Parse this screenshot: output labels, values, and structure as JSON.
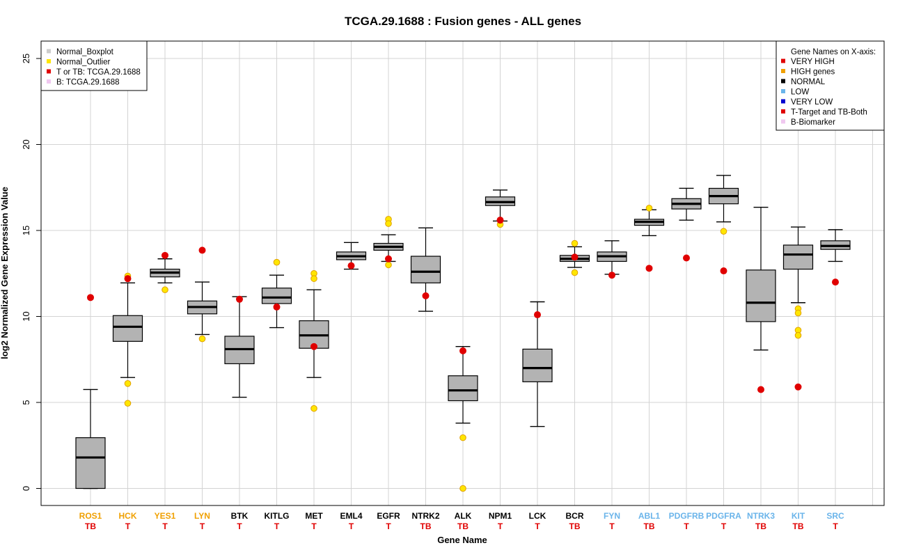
{
  "chart_data": {
    "type": "boxplot",
    "title": "TCGA.29.1688 : Fusion genes - ALL genes",
    "xlabel": "Gene Name",
    "ylabel": "log2 Normalized Gene Expression Value",
    "ylim": [
      -1,
      26
    ],
    "yticks": [
      0,
      5,
      10,
      15,
      20,
      25
    ],
    "grid": true,
    "colors": {
      "box_fill": "#b3b3b3",
      "outlier": "#ffe600",
      "sample": "#e00000",
      "very_high": "#e00000",
      "high": "#f0a000",
      "normal": "#000000",
      "low": "#6ab4ea",
      "very_low": "#0000d0",
      "biomarker": "#f0c8f0"
    },
    "legend_left": {
      "position": "top-left",
      "items": [
        {
          "label": "Normal_Boxplot",
          "color": "#cccccc"
        },
        {
          "label": "Normal_Outlier",
          "color": "#ffe600"
        },
        {
          "label": "T or TB: TCGA.29.1688",
          "color": "#e00000"
        },
        {
          "label": "B: TCGA.29.1688",
          "color": "#f0c8f0"
        }
      ]
    },
    "legend_right": {
      "position": "top-right",
      "title": "Gene Names on X-axis:",
      "items": [
        {
          "label": "VERY HIGH",
          "color": "#e00000"
        },
        {
          "label": "HIGH genes",
          "color": "#f0a000"
        },
        {
          "label": "NORMAL",
          "color": "#000000"
        },
        {
          "label": "LOW",
          "color": "#6ab4ea"
        },
        {
          "label": "VERY LOW",
          "color": "#0000d0"
        },
        {
          "label": "T-Target and TB-Both",
          "color": "#e00000"
        },
        {
          "label": "B-Biomarker",
          "color": "#f0c8f0"
        }
      ]
    },
    "genes": [
      {
        "name": "ROS1",
        "tag": "TB",
        "level": "high",
        "whisker_low": 0.0,
        "q1": 0.0,
        "median": 1.8,
        "q3": 2.95,
        "whisker_high": 5.75,
        "outliers": [],
        "sample": 11.1
      },
      {
        "name": "HCK",
        "tag": "T",
        "level": "high",
        "whisker_low": 6.45,
        "q1": 8.55,
        "median": 9.4,
        "q3": 10.05,
        "whisker_high": 11.95,
        "outliers": [
          12.35,
          6.1,
          4.95
        ],
        "sample": 12.2
      },
      {
        "name": "YES1",
        "tag": "T",
        "level": "high",
        "whisker_low": 11.95,
        "q1": 12.3,
        "median": 12.55,
        "q3": 12.75,
        "whisker_high": 13.35,
        "outliers": [
          11.55
        ],
        "sample": 13.55
      },
      {
        "name": "LYN",
        "tag": "T",
        "level": "high",
        "whisker_low": 8.95,
        "q1": 10.15,
        "median": 10.55,
        "q3": 10.9,
        "whisker_high": 12.0,
        "outliers": [
          8.7
        ],
        "sample": 13.85
      },
      {
        "name": "BTK",
        "tag": "T",
        "level": "normal",
        "whisker_low": 5.3,
        "q1": 7.25,
        "median": 8.1,
        "q3": 8.85,
        "whisker_high": 11.15,
        "outliers": [],
        "sample": 11.0
      },
      {
        "name": "KITLG",
        "tag": "T",
        "level": "normal",
        "whisker_low": 9.35,
        "q1": 10.75,
        "median": 11.1,
        "q3": 11.65,
        "whisker_high": 12.4,
        "outliers": [
          13.15
        ],
        "sample": 10.55
      },
      {
        "name": "MET",
        "tag": "T",
        "level": "normal",
        "whisker_low": 6.45,
        "q1": 8.15,
        "median": 8.9,
        "q3": 9.75,
        "whisker_high": 11.55,
        "outliers": [
          12.5,
          12.2,
          4.65
        ],
        "sample": 8.25
      },
      {
        "name": "EML4",
        "tag": "T",
        "level": "normal",
        "whisker_low": 12.75,
        "q1": 13.3,
        "median": 13.5,
        "q3": 13.75,
        "whisker_high": 14.3,
        "outliers": [],
        "sample": 12.95
      },
      {
        "name": "EGFR",
        "tag": "T",
        "level": "normal",
        "whisker_low": 13.2,
        "q1": 13.85,
        "median": 14.05,
        "q3": 14.25,
        "whisker_high": 14.75,
        "outliers": [
          15.65,
          15.4,
          13.0
        ],
        "sample": 13.35
      },
      {
        "name": "NTRK2",
        "tag": "TB",
        "level": "normal",
        "whisker_low": 10.3,
        "q1": 11.95,
        "median": 12.6,
        "q3": 13.5,
        "whisker_high": 15.15,
        "outliers": [],
        "sample": 11.2
      },
      {
        "name": "ALK",
        "tag": "TB",
        "level": "normal",
        "whisker_low": 3.8,
        "q1": 5.1,
        "median": 5.7,
        "q3": 6.55,
        "whisker_high": 8.25,
        "outliers": [
          2.95,
          0.0
        ],
        "sample": 8.0
      },
      {
        "name": "NPM1",
        "tag": "T",
        "level": "normal",
        "whisker_low": 15.55,
        "q1": 16.45,
        "median": 16.65,
        "q3": 16.95,
        "whisker_high": 17.35,
        "outliers": [
          15.35
        ],
        "sample": 15.6
      },
      {
        "name": "LCK",
        "tag": "T",
        "level": "normal",
        "whisker_low": 3.6,
        "q1": 6.2,
        "median": 7.0,
        "q3": 8.1,
        "whisker_high": 10.85,
        "outliers": [],
        "sample": 10.1
      },
      {
        "name": "BCR",
        "tag": "TB",
        "level": "normal",
        "whisker_low": 12.85,
        "q1": 13.2,
        "median": 13.35,
        "q3": 13.55,
        "whisker_high": 14.05,
        "outliers": [
          14.25,
          12.55
        ],
        "sample": 13.45
      },
      {
        "name": "FYN",
        "tag": "T",
        "level": "low",
        "whisker_low": 12.45,
        "q1": 13.2,
        "median": 13.5,
        "q3": 13.75,
        "whisker_high": 14.4,
        "outliers": [],
        "sample": 12.4
      },
      {
        "name": "ABL1",
        "tag": "TB",
        "level": "low",
        "whisker_low": 14.7,
        "q1": 15.3,
        "median": 15.5,
        "q3": 15.65,
        "whisker_high": 16.2,
        "outliers": [
          16.3
        ],
        "sample": 12.8
      },
      {
        "name": "PDGFRB",
        "tag": "T",
        "level": "low",
        "whisker_low": 15.6,
        "q1": 16.25,
        "median": 16.55,
        "q3": 16.85,
        "whisker_high": 17.45,
        "outliers": [],
        "sample": 13.4
      },
      {
        "name": "PDGFRA",
        "tag": "T",
        "level": "low",
        "whisker_low": 15.5,
        "q1": 16.55,
        "median": 17.0,
        "q3": 17.45,
        "whisker_high": 18.2,
        "outliers": [
          14.95
        ],
        "sample": 12.65
      },
      {
        "name": "NTRK3",
        "tag": "TB",
        "level": "low",
        "whisker_low": 8.05,
        "q1": 9.7,
        "median": 10.8,
        "q3": 12.7,
        "whisker_high": 16.35,
        "outliers": [],
        "sample": 5.75
      },
      {
        "name": "KIT",
        "tag": "TB",
        "level": "low",
        "whisker_low": 10.8,
        "q1": 12.75,
        "median": 13.6,
        "q3": 14.15,
        "whisker_high": 15.2,
        "outliers": [
          10.45,
          10.2,
          9.2,
          8.9
        ],
        "sample": 5.9
      },
      {
        "name": "SRC",
        "tag": "T",
        "level": "low",
        "whisker_low": 13.2,
        "q1": 13.9,
        "median": 14.1,
        "q3": 14.4,
        "whisker_high": 15.05,
        "outliers": [],
        "sample": 12.0
      }
    ]
  }
}
